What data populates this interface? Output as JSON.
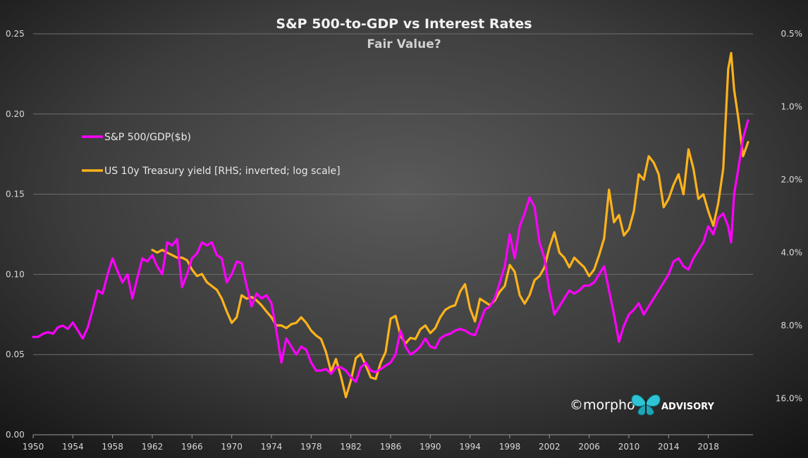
{
  "chart_data": {
    "type": "line",
    "title": "S&P 500-to-GDP  vs Interest Rates",
    "subtitle": "Fair Value?",
    "left_axis": {
      "ylim": [
        0,
        0.25
      ],
      "ticks": [
        "0.00",
        "0.05",
        "0.10",
        "0.15",
        "0.20",
        "0.25"
      ]
    },
    "right_axis": {
      "scale": "log",
      "inverted": true,
      "ylim_percent": [
        0.5,
        22.6
      ],
      "ticks": [
        "0.5%",
        "1.0%",
        "2.0%",
        "4.0%",
        "8.0%",
        "16.0%"
      ]
    },
    "x_axis": {
      "xlim": [
        1950,
        2022.5
      ],
      "ticks": [
        "1950",
        "1954",
        "1958",
        "1962",
        "1966",
        "1970",
        "1974",
        "1978",
        "1982",
        "1986",
        "1990",
        "1994",
        "1998",
        "2002",
        "2006",
        "2010",
        "2014",
        "2018"
      ]
    },
    "grid": true,
    "legend": {
      "position": "upper-left",
      "entries": [
        "S&P 500/GDP($b)",
        "US 10y Treasury yield [RHS; inverted; log scale]"
      ]
    },
    "series": [
      {
        "name": "S&P 500/GDP($b)",
        "axis": "left",
        "color": "#ff00ff",
        "points": [
          [
            1950.0,
            0.061
          ],
          [
            1950.5,
            0.061
          ],
          [
            1951.0,
            0.063
          ],
          [
            1951.5,
            0.064
          ],
          [
            1952.0,
            0.063
          ],
          [
            1952.5,
            0.067
          ],
          [
            1953.0,
            0.068
          ],
          [
            1953.5,
            0.066
          ],
          [
            1954.0,
            0.07
          ],
          [
            1954.5,
            0.065
          ],
          [
            1955.0,
            0.06
          ],
          [
            1955.5,
            0.067
          ],
          [
            1956.0,
            0.078
          ],
          [
            1956.5,
            0.09
          ],
          [
            1957.0,
            0.088
          ],
          [
            1957.5,
            0.1
          ],
          [
            1958.0,
            0.11
          ],
          [
            1958.5,
            0.102
          ],
          [
            1959.0,
            0.095
          ],
          [
            1959.5,
            0.1
          ],
          [
            1960.0,
            0.085
          ],
          [
            1960.5,
            0.098
          ],
          [
            1961.0,
            0.11
          ],
          [
            1961.5,
            0.108
          ],
          [
            1962.0,
            0.112
          ],
          [
            1962.5,
            0.105
          ],
          [
            1963.0,
            0.1
          ],
          [
            1963.5,
            0.12
          ],
          [
            1964.0,
            0.118
          ],
          [
            1964.5,
            0.122
          ],
          [
            1965.0,
            0.092
          ],
          [
            1965.5,
            0.1
          ],
          [
            1966.0,
            0.11
          ],
          [
            1966.5,
            0.113
          ],
          [
            1967.0,
            0.12
          ],
          [
            1967.5,
            0.118
          ],
          [
            1968.0,
            0.12
          ],
          [
            1968.5,
            0.112
          ],
          [
            1969.0,
            0.11
          ],
          [
            1969.5,
            0.095
          ],
          [
            1970.0,
            0.1
          ],
          [
            1970.5,
            0.108
          ],
          [
            1971.0,
            0.107
          ],
          [
            1971.5,
            0.093
          ],
          [
            1972.0,
            0.08
          ],
          [
            1972.5,
            0.088
          ],
          [
            1973.0,
            0.085
          ],
          [
            1973.5,
            0.087
          ],
          [
            1974.0,
            0.082
          ],
          [
            1974.5,
            0.065
          ],
          [
            1975.0,
            0.045
          ],
          [
            1975.5,
            0.06
          ],
          [
            1976.0,
            0.055
          ],
          [
            1976.5,
            0.05
          ],
          [
            1977.0,
            0.055
          ],
          [
            1977.5,
            0.053
          ],
          [
            1978.0,
            0.045
          ],
          [
            1978.5,
            0.04
          ],
          [
            1979.0,
            0.04
          ],
          [
            1979.5,
            0.041
          ],
          [
            1980.0,
            0.038
          ],
          [
            1980.5,
            0.042
          ],
          [
            1981.0,
            0.042
          ],
          [
            1981.5,
            0.04
          ],
          [
            1982.0,
            0.036
          ],
          [
            1982.5,
            0.033
          ],
          [
            1983.0,
            0.042
          ],
          [
            1983.5,
            0.045
          ],
          [
            1984.0,
            0.04
          ],
          [
            1984.5,
            0.039
          ],
          [
            1985.0,
            0.041
          ],
          [
            1985.5,
            0.043
          ],
          [
            1986.0,
            0.045
          ],
          [
            1986.5,
            0.05
          ],
          [
            1987.0,
            0.065
          ],
          [
            1987.5,
            0.055
          ],
          [
            1988.0,
            0.05
          ],
          [
            1988.5,
            0.052
          ],
          [
            1989.0,
            0.055
          ],
          [
            1989.5,
            0.06
          ],
          [
            1990.0,
            0.055
          ],
          [
            1990.5,
            0.054
          ],
          [
            1991.0,
            0.06
          ],
          [
            1991.5,
            0.062
          ],
          [
            1992.0,
            0.063
          ],
          [
            1992.5,
            0.065
          ],
          [
            1993.0,
            0.066
          ],
          [
            1993.5,
            0.065
          ],
          [
            1994.0,
            0.063
          ],
          [
            1994.5,
            0.062
          ],
          [
            1995.0,
            0.07
          ],
          [
            1995.5,
            0.078
          ],
          [
            1996.0,
            0.08
          ],
          [
            1996.5,
            0.085
          ],
          [
            1997.0,
            0.095
          ],
          [
            1997.5,
            0.105
          ],
          [
            1998.0,
            0.125
          ],
          [
            1998.5,
            0.11
          ],
          [
            1999.0,
            0.13
          ],
          [
            1999.5,
            0.138
          ],
          [
            2000.0,
            0.148
          ],
          [
            2000.5,
            0.142
          ],
          [
            2001.0,
            0.12
          ],
          [
            2001.5,
            0.11
          ],
          [
            2002.0,
            0.09
          ],
          [
            2002.5,
            0.075
          ],
          [
            2003.0,
            0.08
          ],
          [
            2003.5,
            0.085
          ],
          [
            2004.0,
            0.09
          ],
          [
            2004.5,
            0.088
          ],
          [
            2005.0,
            0.09
          ],
          [
            2005.5,
            0.093
          ],
          [
            2006.0,
            0.093
          ],
          [
            2006.5,
            0.095
          ],
          [
            2007.0,
            0.1
          ],
          [
            2007.5,
            0.105
          ],
          [
            2008.0,
            0.09
          ],
          [
            2008.5,
            0.075
          ],
          [
            2009.0,
            0.058
          ],
          [
            2009.5,
            0.068
          ],
          [
            2010.0,
            0.075
          ],
          [
            2010.5,
            0.078
          ],
          [
            2011.0,
            0.082
          ],
          [
            2011.5,
            0.075
          ],
          [
            2012.0,
            0.08
          ],
          [
            2012.5,
            0.085
          ],
          [
            2013.0,
            0.09
          ],
          [
            2013.5,
            0.095
          ],
          [
            2014.0,
            0.1
          ],
          [
            2014.5,
            0.108
          ],
          [
            2015.0,
            0.11
          ],
          [
            2015.5,
            0.105
          ],
          [
            2016.0,
            0.103
          ],
          [
            2016.5,
            0.11
          ],
          [
            2017.0,
            0.115
          ],
          [
            2017.5,
            0.12
          ],
          [
            2018.0,
            0.13
          ],
          [
            2018.5,
            0.125
          ],
          [
            2019.0,
            0.135
          ],
          [
            2019.5,
            0.138
          ],
          [
            2020.0,
            0.13
          ],
          [
            2020.3,
            0.12
          ],
          [
            2020.6,
            0.15
          ],
          [
            2021.0,
            0.165
          ],
          [
            2021.5,
            0.185
          ],
          [
            2022.0,
            0.196
          ]
        ]
      },
      {
        "name": "US 10y Treasury yield [RHS; inverted; log scale]",
        "axis": "right",
        "unit": "%",
        "color": "#ffb31a",
        "points": [
          [
            1962.0,
            3.9
          ],
          [
            1962.5,
            4.0
          ],
          [
            1963.0,
            3.9
          ],
          [
            1963.5,
            4.0
          ],
          [
            1964.0,
            4.1
          ],
          [
            1964.5,
            4.2
          ],
          [
            1965.0,
            4.2
          ],
          [
            1965.5,
            4.3
          ],
          [
            1966.0,
            4.7
          ],
          [
            1966.5,
            5.0
          ],
          [
            1967.0,
            4.9
          ],
          [
            1967.5,
            5.3
          ],
          [
            1968.0,
            5.5
          ],
          [
            1968.5,
            5.7
          ],
          [
            1969.0,
            6.2
          ],
          [
            1969.5,
            7.0
          ],
          [
            1970.0,
            7.8
          ],
          [
            1970.5,
            7.4
          ],
          [
            1971.0,
            6.0
          ],
          [
            1971.5,
            6.2
          ],
          [
            1972.0,
            6.1
          ],
          [
            1972.5,
            6.3
          ],
          [
            1973.0,
            6.6
          ],
          [
            1973.5,
            7.0
          ],
          [
            1974.0,
            7.4
          ],
          [
            1974.5,
            8.0
          ],
          [
            1975.0,
            8.0
          ],
          [
            1975.5,
            8.2
          ],
          [
            1976.0,
            7.9
          ],
          [
            1976.5,
            7.8
          ],
          [
            1977.0,
            7.4
          ],
          [
            1977.5,
            7.8
          ],
          [
            1978.0,
            8.4
          ],
          [
            1978.5,
            8.8
          ],
          [
            1979.0,
            9.1
          ],
          [
            1979.5,
            10.3
          ],
          [
            1980.0,
            12.4
          ],
          [
            1980.5,
            11.0
          ],
          [
            1981.0,
            13.0
          ],
          [
            1981.5,
            15.8
          ],
          [
            1982.0,
            13.5
          ],
          [
            1982.5,
            10.9
          ],
          [
            1983.0,
            10.5
          ],
          [
            1983.5,
            11.7
          ],
          [
            1984.0,
            13.1
          ],
          [
            1984.5,
            13.3
          ],
          [
            1985.0,
            11.4
          ],
          [
            1985.5,
            10.3
          ],
          [
            1986.0,
            7.5
          ],
          [
            1986.5,
            7.3
          ],
          [
            1987.0,
            8.8
          ],
          [
            1987.5,
            9.5
          ],
          [
            1988.0,
            9.0
          ],
          [
            1988.5,
            9.1
          ],
          [
            1989.0,
            8.3
          ],
          [
            1989.5,
            8.0
          ],
          [
            1990.0,
            8.6
          ],
          [
            1990.5,
            8.2
          ],
          [
            1991.0,
            7.4
          ],
          [
            1991.5,
            6.9
          ],
          [
            1992.0,
            6.7
          ],
          [
            1992.5,
            6.6
          ],
          [
            1993.0,
            5.8
          ],
          [
            1993.5,
            5.4
          ],
          [
            1994.0,
            6.8
          ],
          [
            1994.5,
            7.7
          ],
          [
            1995.0,
            6.2
          ],
          [
            1995.5,
            6.4
          ],
          [
            1996.0,
            6.6
          ],
          [
            1996.5,
            6.3
          ],
          [
            1997.0,
            5.8
          ],
          [
            1997.5,
            5.5
          ],
          [
            1998.0,
            4.5
          ],
          [
            1998.5,
            4.8
          ],
          [
            1999.0,
            6.0
          ],
          [
            1999.5,
            6.5
          ],
          [
            2000.0,
            6.0
          ],
          [
            2000.5,
            5.2
          ],
          [
            2001.0,
            5.0
          ],
          [
            2001.5,
            4.6
          ],
          [
            2002.0,
            3.8
          ],
          [
            2002.5,
            3.3
          ],
          [
            2003.0,
            4.0
          ],
          [
            2003.5,
            4.2
          ],
          [
            2004.0,
            4.6
          ],
          [
            2004.5,
            4.2
          ],
          [
            2005.0,
            4.4
          ],
          [
            2005.5,
            4.6
          ],
          [
            2006.0,
            5.0
          ],
          [
            2006.5,
            4.7
          ],
          [
            2007.0,
            4.1
          ],
          [
            2007.5,
            3.5
          ],
          [
            2008.0,
            2.2
          ],
          [
            2008.5,
            3.0
          ],
          [
            2009.0,
            2.8
          ],
          [
            2009.5,
            3.4
          ],
          [
            2010.0,
            3.2
          ],
          [
            2010.5,
            2.7
          ],
          [
            2011.0,
            1.9
          ],
          [
            2011.5,
            2.0
          ],
          [
            2012.0,
            1.6
          ],
          [
            2012.5,
            1.7
          ],
          [
            2013.0,
            1.9
          ],
          [
            2013.5,
            2.6
          ],
          [
            2014.0,
            2.4
          ],
          [
            2014.5,
            2.1
          ],
          [
            2015.0,
            1.9
          ],
          [
            2015.5,
            2.3
          ],
          [
            2016.0,
            1.5
          ],
          [
            2016.5,
            1.8
          ],
          [
            2017.0,
            2.4
          ],
          [
            2017.5,
            2.3
          ],
          [
            2018.0,
            2.7
          ],
          [
            2018.5,
            3.1
          ],
          [
            2019.0,
            2.5
          ],
          [
            2019.5,
            1.8
          ],
          [
            2020.0,
            0.7
          ],
          [
            2020.3,
            0.6
          ],
          [
            2020.6,
            0.85
          ],
          [
            2021.0,
            1.1
          ],
          [
            2021.5,
            1.6
          ],
          [
            2022.0,
            1.4
          ]
        ]
      }
    ]
  },
  "watermark": {
    "text": "©morpho",
    "text2": "ADVISORY",
    "icon": "butterfly-icon"
  }
}
